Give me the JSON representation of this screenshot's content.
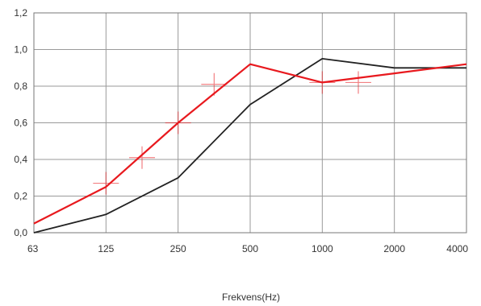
{
  "chart_data": {
    "type": "line",
    "title": "",
    "xlabel": "Frekvens(Hz)",
    "ylabel": "",
    "categories": [
      "63",
      "125",
      "250",
      "500",
      "1000",
      "2000",
      "4000"
    ],
    "ylim": [
      0,
      1.2
    ],
    "yticks": [
      "0,0",
      "0,2",
      "0,4",
      "0,6",
      "0,8",
      "1,0",
      "1,2"
    ],
    "grid": true,
    "legend": "none",
    "series": [
      {
        "color": "#222222",
        "values": [
          0.0,
          0.1,
          0.3,
          0.7,
          0.95,
          0.9,
          0.9
        ]
      },
      {
        "color": "#e8191e",
        "values": [
          0.05,
          0.25,
          0.6,
          0.92,
          0.82,
          0.87,
          0.92
        ]
      }
    ],
    "markers": [
      {
        "x": "125",
        "y": 0.27
      },
      {
        "x": 1.5,
        "y": 0.41
      },
      {
        "x": "250",
        "y": 0.6
      },
      {
        "x": 2.5,
        "y": 0.81
      },
      {
        "x": "1000",
        "y": 0.82
      },
      {
        "x": 4.5,
        "y": 0.82
      }
    ]
  }
}
